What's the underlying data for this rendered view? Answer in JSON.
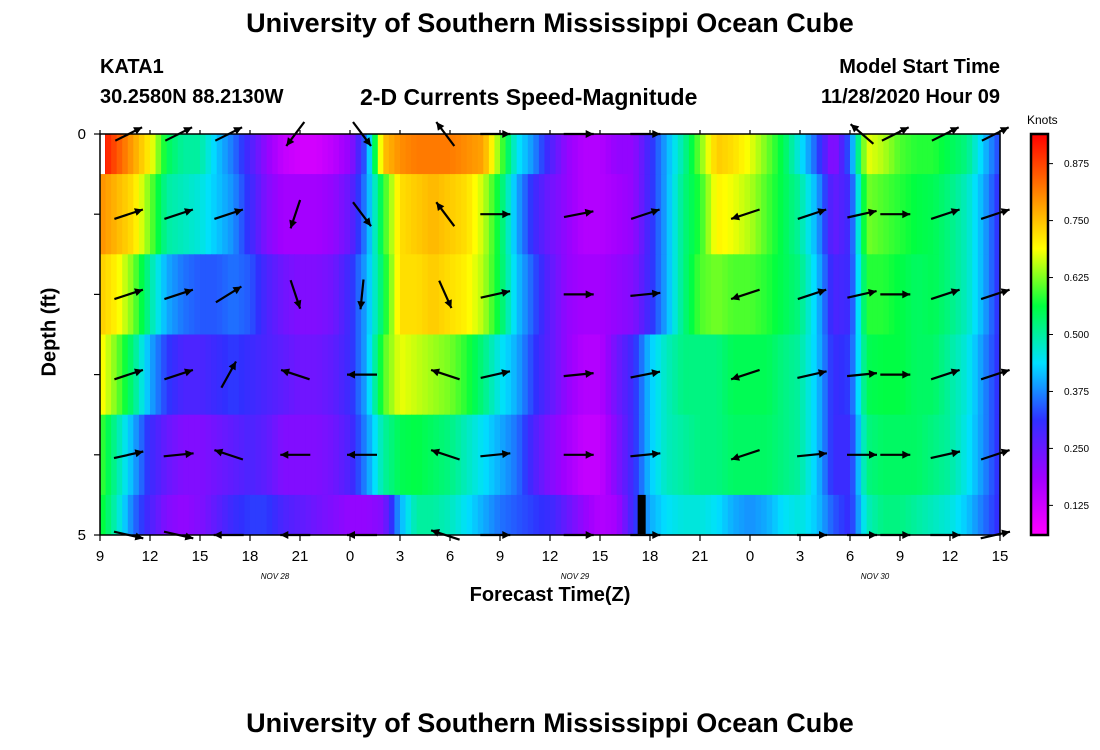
{
  "page": {
    "title_top": "University of Southern Mississippi Ocean Cube",
    "title_bottom": "University of Southern Mississippi Ocean Cube",
    "station": "KATA1",
    "coords": "30.2580N 88.2130W",
    "subtitle": "2-D Currents Speed-Magnitude",
    "model_start_label": "Model Start Time",
    "model_start_value": "11/28/2020 Hour 09"
  },
  "colors": {
    "scale": [
      "#ff00ff",
      "#a000ff",
      "#3030ff",
      "#00e0ff",
      "#00ff40",
      "#ffff00",
      "#ff8000",
      "#ff0000"
    ],
    "arrow": "#000000",
    "missing": "#000000"
  },
  "chart_data": {
    "type": "heatmap",
    "title": "2-D Currents Speed-Magnitude",
    "xlabel": "Forecast Time(Z)",
    "ylabel": "Depth (ft)",
    "colorbar_label": "Knots",
    "colorbar_ticks": [
      0.125,
      0.25,
      0.375,
      0.5,
      0.625,
      0.75,
      0.875
    ],
    "colorbar_range": [
      0.06,
      0.94
    ],
    "x_tick_labels": [
      "9",
      "12",
      "15",
      "18",
      "21",
      "0",
      "3",
      "6",
      "9",
      "12",
      "15",
      "18",
      "21",
      "0",
      "3",
      "6",
      "9",
      "12",
      "15"
    ],
    "date_labels": [
      {
        "label": "NOV  28",
        "tick_index": 3.5
      },
      {
        "label": "NOV  29",
        "tick_index": 9.5
      },
      {
        "label": "NOV  30",
        "tick_index": 15.5
      }
    ],
    "y_tick_labels": [
      {
        "value": 0,
        "label": "0"
      },
      {
        "value": 5,
        "label": "5"
      }
    ],
    "xlim_hours": [
      0,
      54
    ],
    "ylim_ft": [
      0,
      5
    ],
    "depth_levels_ft": [
      0,
      1,
      2,
      3,
      4,
      5
    ],
    "missing_data": {
      "hour": 32.5,
      "depth_from": 4.5,
      "depth_to": 5
    },
    "speed_keyframes": {
      "hours": [
        0,
        1,
        2,
        3,
        4,
        5,
        6,
        7,
        8,
        9,
        10,
        11,
        12,
        13,
        14,
        15,
        16,
        17,
        18,
        19,
        20,
        21,
        22,
        23,
        24,
        25,
        26,
        27,
        28,
        29,
        30,
        31,
        32,
        33,
        34,
        35,
        36,
        37,
        38,
        39,
        40,
        41,
        42,
        43,
        44,
        45,
        46,
        47,
        48,
        49,
        50,
        51,
        52,
        53,
        54
      ],
      "by_level": [
        [
          0.94,
          0.86,
          0.78,
          0.7,
          0.55,
          0.5,
          0.5,
          0.42,
          0.36,
          0.28,
          0.2,
          0.14,
          0.12,
          0.12,
          0.15,
          0.2,
          0.36,
          0.75,
          0.8,
          0.82,
          0.82,
          0.82,
          0.8,
          0.78,
          0.62,
          0.45,
          0.38,
          0.28,
          0.2,
          0.16,
          0.16,
          0.2,
          0.2,
          0.3,
          0.4,
          0.5,
          0.62,
          0.74,
          0.72,
          0.68,
          0.62,
          0.55,
          0.45,
          0.34,
          0.2,
          0.35,
          0.68,
          0.65,
          0.6,
          0.58,
          0.58,
          0.55,
          0.52,
          0.42,
          0.32
        ],
        [
          0.8,
          0.76,
          0.72,
          0.62,
          0.5,
          0.48,
          0.46,
          0.42,
          0.38,
          0.3,
          0.22,
          0.18,
          0.18,
          0.18,
          0.2,
          0.25,
          0.38,
          0.58,
          0.72,
          0.74,
          0.76,
          0.74,
          0.72,
          0.66,
          0.55,
          0.4,
          0.3,
          0.24,
          0.2,
          0.16,
          0.16,
          0.18,
          0.2,
          0.3,
          0.4,
          0.52,
          0.58,
          0.7,
          0.68,
          0.65,
          0.6,
          0.55,
          0.5,
          0.4,
          0.25,
          0.3,
          0.62,
          0.6,
          0.58,
          0.56,
          0.55,
          0.52,
          0.48,
          0.4,
          0.3
        ],
        [
          0.74,
          0.7,
          0.62,
          0.5,
          0.4,
          0.36,
          0.34,
          0.34,
          0.36,
          0.34,
          0.28,
          0.24,
          0.22,
          0.22,
          0.24,
          0.3,
          0.4,
          0.55,
          0.72,
          0.72,
          0.74,
          0.72,
          0.7,
          0.65,
          0.55,
          0.42,
          0.34,
          0.26,
          0.2,
          0.18,
          0.18,
          0.2,
          0.22,
          0.3,
          0.4,
          0.52,
          0.6,
          0.62,
          0.6,
          0.6,
          0.58,
          0.55,
          0.52,
          0.42,
          0.28,
          0.3,
          0.58,
          0.58,
          0.56,
          0.54,
          0.55,
          0.52,
          0.48,
          0.4,
          0.3
        ],
        [
          0.7,
          0.62,
          0.52,
          0.4,
          0.32,
          0.28,
          0.28,
          0.3,
          0.32,
          0.3,
          0.28,
          0.26,
          0.24,
          0.24,
          0.26,
          0.3,
          0.4,
          0.6,
          0.68,
          0.66,
          0.64,
          0.62,
          0.58,
          0.52,
          0.45,
          0.4,
          0.32,
          0.26,
          0.2,
          0.16,
          0.16,
          0.24,
          0.3,
          0.42,
          0.48,
          0.52,
          0.52,
          0.52,
          0.55,
          0.55,
          0.55,
          0.52,
          0.5,
          0.42,
          0.3,
          0.32,
          0.55,
          0.56,
          0.56,
          0.54,
          0.54,
          0.5,
          0.46,
          0.38,
          0.3
        ],
        [
          0.6,
          0.5,
          0.4,
          0.3,
          0.25,
          0.22,
          0.22,
          0.24,
          0.26,
          0.28,
          0.26,
          0.22,
          0.22,
          0.22,
          0.24,
          0.28,
          0.38,
          0.5,
          0.55,
          0.56,
          0.54,
          0.52,
          0.48,
          0.44,
          0.4,
          0.36,
          0.28,
          0.22,
          0.18,
          0.14,
          0.14,
          0.22,
          0.3,
          0.42,
          0.48,
          0.5,
          0.52,
          0.52,
          0.54,
          0.54,
          0.54,
          0.52,
          0.5,
          0.42,
          0.3,
          0.3,
          0.52,
          0.54,
          0.54,
          0.54,
          0.52,
          0.5,
          0.45,
          0.38,
          0.3
        ],
        [
          0.58,
          0.48,
          0.36,
          0.28,
          0.22,
          0.2,
          0.22,
          0.26,
          0.3,
          0.32,
          0.32,
          0.28,
          0.26,
          0.24,
          0.22,
          0.2,
          0.2,
          0.22,
          0.4,
          0.5,
          0.5,
          0.48,
          0.44,
          0.4,
          0.36,
          0.34,
          0.32,
          0.3,
          0.25,
          0.2,
          0.16,
          0.18,
          0.3,
          0.4,
          0.44,
          0.46,
          0.46,
          0.44,
          0.4,
          0.38,
          0.4,
          0.44,
          0.46,
          0.42,
          0.34,
          0.3,
          0.48,
          0.52,
          0.52,
          0.5,
          0.48,
          0.46,
          0.42,
          0.36,
          0.3
        ]
      ]
    },
    "vectors": {
      "hours": [
        1,
        4,
        7,
        11,
        15,
        20,
        23,
        28,
        32,
        38,
        42,
        45,
        47,
        50,
        53
      ],
      "by_level": [
        [
          [
            0.8,
            0.4
          ],
          [
            0.8,
            0.4
          ],
          [
            0.8,
            0.4
          ],
          [
            -0.6,
            -0.8
          ],
          [
            0.6,
            -0.8
          ],
          [
            -0.6,
            0.8
          ],
          [
            1,
            0
          ],
          [
            1,
            0
          ],
          [
            1,
            0
          ],
          null,
          null,
          [
            -0.7,
            0.6
          ],
          [
            0.8,
            0.4
          ],
          [
            0.8,
            0.4
          ],
          [
            0.8,
            0.4
          ]
        ],
        [
          [
            0.9,
            0.3
          ],
          [
            0.9,
            0.3
          ],
          [
            0.9,
            0.3
          ],
          [
            -0.3,
            -0.9
          ],
          [
            0.6,
            -0.8
          ],
          [
            -0.6,
            0.8
          ],
          [
            1,
            0
          ],
          [
            1,
            0.2
          ],
          [
            0.9,
            0.3
          ],
          [
            -0.9,
            -0.3
          ],
          [
            0.9,
            0.3
          ],
          [
            0.9,
            0.2
          ],
          [
            1,
            0
          ],
          [
            0.9,
            0.3
          ],
          [
            0.9,
            0.3
          ]
        ],
        [
          [
            0.9,
            0.3
          ],
          [
            0.9,
            0.3
          ],
          [
            0.8,
            0.5
          ],
          [
            0.3,
            -0.9
          ],
          [
            -0.1,
            -1
          ],
          [
            0.4,
            -0.9
          ],
          [
            0.9,
            0.2
          ],
          [
            1,
            0
          ],
          [
            1,
            0.1
          ],
          [
            -0.9,
            -0.3
          ],
          [
            0.9,
            0.3
          ],
          [
            0.9,
            0.2
          ],
          [
            1,
            0
          ],
          [
            0.9,
            0.3
          ],
          [
            0.9,
            0.3
          ]
        ],
        [
          [
            0.9,
            0.3
          ],
          [
            0.9,
            0.3
          ],
          [
            0.5,
            0.9
          ],
          [
            -0.9,
            0.3
          ],
          [
            -1,
            0
          ],
          [
            -0.9,
            0.3
          ],
          [
            0.9,
            0.2
          ],
          [
            1,
            0.1
          ],
          [
            1,
            0.2
          ],
          [
            -0.9,
            -0.3
          ],
          [
            0.9,
            0.2
          ],
          [
            1,
            0.1
          ],
          [
            1,
            0
          ],
          [
            0.9,
            0.3
          ],
          [
            0.9,
            0.3
          ]
        ],
        [
          [
            0.9,
            0.2
          ],
          [
            1,
            0.1
          ],
          [
            -0.9,
            0.3
          ],
          [
            -1,
            0
          ],
          [
            -1,
            0
          ],
          [
            -0.9,
            0.3
          ],
          [
            1,
            0.1
          ],
          [
            1,
            0
          ],
          [
            1,
            0.1
          ],
          [
            -0.9,
            -0.3
          ],
          [
            1,
            0.1
          ],
          [
            1,
            0
          ],
          [
            1,
            0
          ],
          [
            0.9,
            0.2
          ],
          [
            0.9,
            0.3
          ]
        ],
        [
          [
            0.9,
            -0.2
          ],
          [
            0.9,
            -0.2
          ],
          [
            -1,
            0
          ],
          [
            -1,
            0
          ],
          [
            -1,
            0
          ],
          [
            -0.9,
            0.3
          ],
          [
            1,
            0
          ],
          [
            1,
            0
          ],
          [
            1,
            0
          ],
          null,
          [
            1,
            0
          ],
          [
            1,
            0
          ],
          [
            1,
            0
          ],
          [
            1,
            0
          ],
          [
            0.9,
            0.2
          ]
        ]
      ]
    }
  }
}
